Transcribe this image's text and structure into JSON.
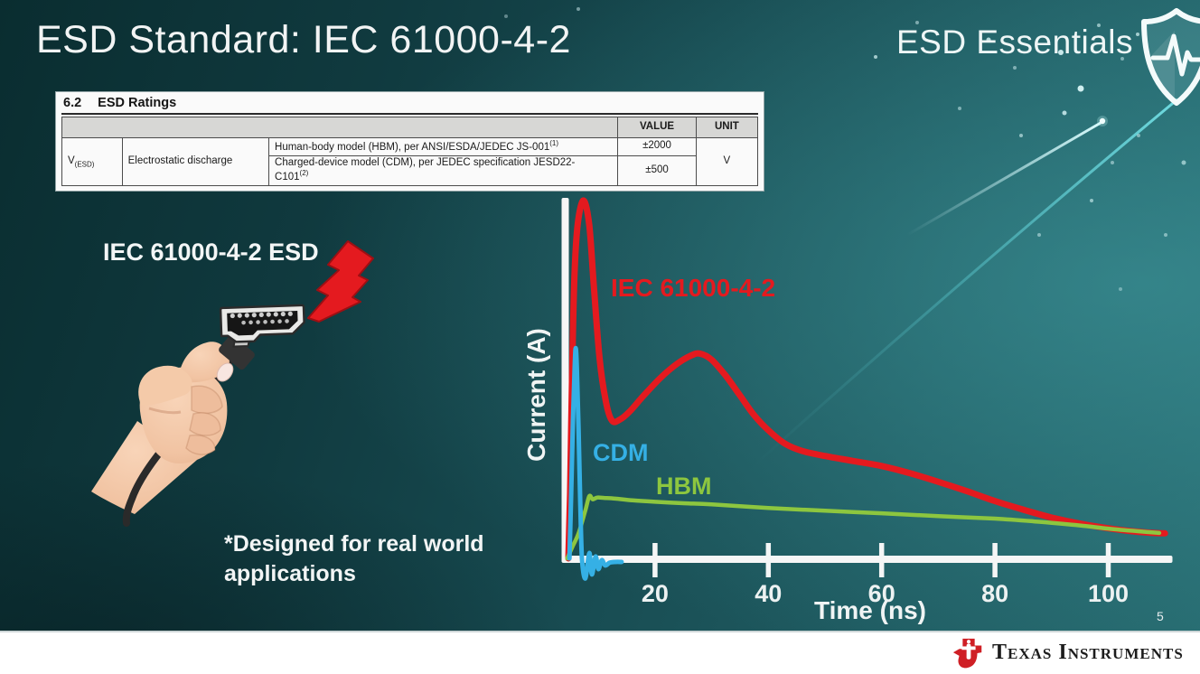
{
  "slide": {
    "title": "ESD Standard: IEC 61000-4-2",
    "brand": "ESD Essentials",
    "page_number": "5",
    "illustration_label": "IEC 61000-4-2 ESD",
    "footnote": {
      "line1": "*Designed for real world",
      "line2": "applications"
    },
    "footer": {
      "company": "Texas Instruments"
    },
    "colors": {
      "background_teal": "#1d565b",
      "accent_red": "#e41a1f",
      "accent_cyan": "#35b0e5",
      "accent_green": "#8dc63f",
      "ti_red": "#cf1f25",
      "axis_white": "#f6f6f6"
    },
    "icons": {
      "brand_icon": "shield-pulse-icon",
      "strike_icon": "lightning-bolt-icon",
      "footer_icon": "ti-bug-icon"
    }
  },
  "ratings_table": {
    "section": "6.2",
    "section_title": "ESD Ratings",
    "headers": {
      "value": "VALUE",
      "unit": "UNIT"
    },
    "symbol": "V",
    "symbol_sub": "(ESD)",
    "parameter": "Electrostatic discharge",
    "rows": [
      {
        "description": "Human-body model (HBM), per ANSI/ESDA/JEDEC JS-001",
        "sup": "(1)",
        "value": "±2000"
      },
      {
        "description": "Charged-device model (CDM), per JEDEC specification JESD22-C101",
        "sup": "(2)",
        "value": "±500"
      }
    ],
    "unit": "V"
  },
  "chart_data": {
    "type": "line",
    "title": "",
    "xlabel": "Time (ns)",
    "ylabel": "Current (A)",
    "x_ticks": [
      20,
      40,
      60,
      80,
      100
    ],
    "xlim": [
      3,
      112
    ],
    "grid": false,
    "legend": "inline-labels",
    "y_unit": "relative amplitude (% of IEC 61000-4-2 peak); y axis unnumbered",
    "series": [
      {
        "name": "IEC 61000-4-2",
        "color": "#e41a1f",
        "points": [
          [
            4.7,
            0
          ],
          [
            5.0,
            18
          ],
          [
            5.4,
            55
          ],
          [
            5.8,
            80
          ],
          [
            6.4,
            94
          ],
          [
            7.4,
            100
          ],
          [
            8.4,
            93
          ],
          [
            9.2,
            76
          ],
          [
            10.2,
            56
          ],
          [
            11.3,
            44
          ],
          [
            12.4,
            38.5
          ],
          [
            13.8,
            38.8
          ],
          [
            15.5,
            41
          ],
          [
            18,
            45.5
          ],
          [
            21,
            50.5
          ],
          [
            24,
            54.5
          ],
          [
            26.5,
            56.8
          ],
          [
            28,
            57.2
          ],
          [
            30,
            55.5
          ],
          [
            32.5,
            51
          ],
          [
            35,
            45.5
          ],
          [
            37.5,
            40
          ],
          [
            40,
            35.8
          ],
          [
            43,
            32
          ],
          [
            46,
            30
          ],
          [
            50,
            28.6
          ],
          [
            55,
            27.2
          ],
          [
            60,
            25.8
          ],
          [
            65,
            23.8
          ],
          [
            70,
            21.4
          ],
          [
            75,
            18.8
          ],
          [
            80,
            16
          ],
          [
            85,
            13.6
          ],
          [
            90,
            11.4
          ],
          [
            95,
            9.7
          ],
          [
            100,
            8.4
          ],
          [
            104,
            7.6
          ],
          [
            108,
            7.1
          ],
          [
            110,
            7.0
          ]
        ]
      },
      {
        "name": "CDM",
        "color": "#35b0e5",
        "points": [
          [
            4.9,
            0
          ],
          [
            5.2,
            18
          ],
          [
            5.5,
            38
          ],
          [
            5.8,
            53
          ],
          [
            6.0,
            58.8
          ],
          [
            6.2,
            53
          ],
          [
            6.5,
            36
          ],
          [
            6.8,
            16
          ],
          [
            7.1,
            0
          ],
          [
            7.7,
            -5.6
          ],
          [
            8.4,
            1.5
          ],
          [
            8.85,
            -4.5
          ],
          [
            9.5,
            0.5
          ],
          [
            10,
            -3
          ],
          [
            10.6,
            -0.5
          ],
          [
            11.2,
            -2
          ],
          [
            12,
            -1.2
          ],
          [
            13,
            -1
          ],
          [
            14.1,
            -1
          ]
        ]
      },
      {
        "name": "HBM",
        "color": "#8dc63f",
        "points": [
          [
            4.5,
            0
          ],
          [
            5.5,
            3.5
          ],
          [
            6.5,
            7
          ],
          [
            7.7,
            13.4
          ],
          [
            8.4,
            17.4
          ],
          [
            9.0,
            16.5
          ],
          [
            9.8,
            17
          ],
          [
            11,
            16.9
          ],
          [
            13,
            16.7
          ],
          [
            16,
            16.2
          ],
          [
            20,
            15.8
          ],
          [
            25,
            15.4
          ],
          [
            30,
            15.1
          ],
          [
            40,
            14.1
          ],
          [
            50,
            13.3
          ],
          [
            60,
            12.6
          ],
          [
            70,
            11.8
          ],
          [
            80,
            11.1
          ],
          [
            88,
            10.2
          ],
          [
            95,
            9.2
          ],
          [
            100,
            8.3
          ],
          [
            105,
            7.6
          ],
          [
            109,
            7.1
          ]
        ]
      }
    ],
    "annotations": [
      {
        "text": "IEC 61000-4-2",
        "series": "IEC 61000-4-2"
      },
      {
        "text": "CDM",
        "series": "CDM"
      },
      {
        "text": "HBM",
        "series": "HBM"
      }
    ]
  }
}
